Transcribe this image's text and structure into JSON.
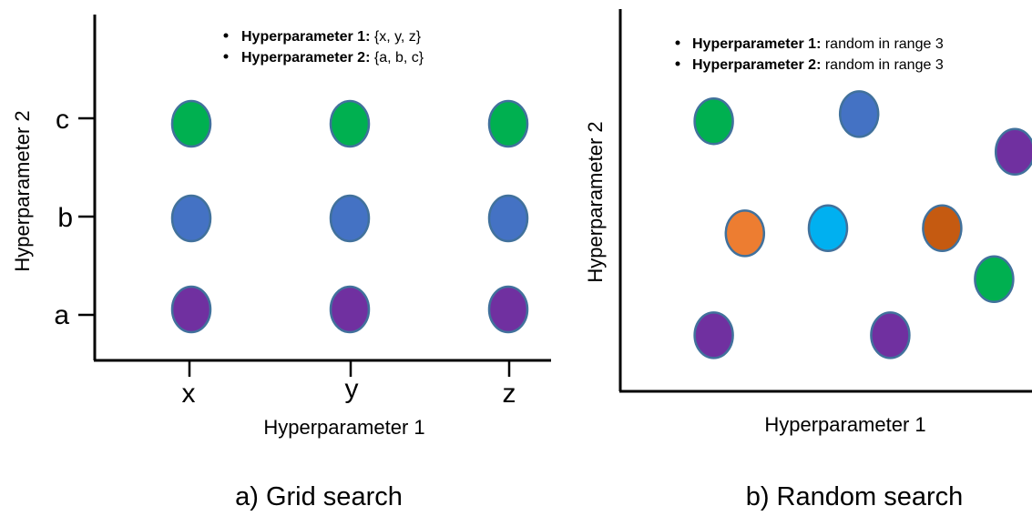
{
  "panels": {
    "grid": {
      "caption": "a) Grid search",
      "xlabel": "Hyperparameter 1",
      "ylabel": "Hyperparameter 2",
      "legend": [
        {
          "bold": "Hyperparameter 1:",
          "text": " {x, y, z}"
        },
        {
          "bold": "Hyperparameter 2:",
          "text": " {a, b, c}"
        }
      ],
      "xticks": [
        "x",
        "y",
        "z"
      ],
      "yticks": [
        "a",
        "b",
        "c"
      ]
    },
    "random": {
      "caption": "b) Random search",
      "xlabel": "Hyperparameter 1",
      "ylabel": "Hyperparameter 2",
      "legend": [
        {
          "bold": "Hyperparameter 1:",
          "text": " random in range 3"
        },
        {
          "bold": "Hyperparameter 2:",
          "text": " random in range 3"
        }
      ]
    }
  },
  "colors": {
    "green": "#00b050",
    "blue": "#4472c4",
    "purple": "#7030a0",
    "orange": "#ed7d31",
    "cyan": "#00b0f0",
    "brown": "#c55a11",
    "outline": "#41719c"
  },
  "grid_points": [
    {
      "x": "x",
      "y": "c",
      "color": "green"
    },
    {
      "x": "y",
      "y": "c",
      "color": "green"
    },
    {
      "x": "z",
      "y": "c",
      "color": "green"
    },
    {
      "x": "x",
      "y": "b",
      "color": "blue"
    },
    {
      "x": "y",
      "y": "b",
      "color": "blue"
    },
    {
      "x": "z",
      "y": "b",
      "color": "blue"
    },
    {
      "x": "x",
      "y": "a",
      "color": "purple"
    },
    {
      "x": "y",
      "y": "a",
      "color": "purple"
    },
    {
      "x": "z",
      "y": "a",
      "color": "purple"
    }
  ],
  "random_points": [
    {
      "h1": 0.45,
      "h2": 2.65,
      "color": "green"
    },
    {
      "h1": 1.15,
      "h2": 2.72,
      "color": "blue"
    },
    {
      "h1": 1.9,
      "h2": 2.35,
      "color": "purple"
    },
    {
      "h1": 0.6,
      "h2": 1.55,
      "color": "orange"
    },
    {
      "h1": 1.0,
      "h2": 1.6,
      "color": "cyan"
    },
    {
      "h1": 1.55,
      "h2": 1.6,
      "color": "brown"
    },
    {
      "h1": 1.8,
      "h2": 1.1,
      "color": "green"
    },
    {
      "h1": 0.45,
      "h2": 0.55,
      "color": "purple"
    },
    {
      "h1": 1.3,
      "h2": 0.55,
      "color": "purple"
    }
  ]
}
